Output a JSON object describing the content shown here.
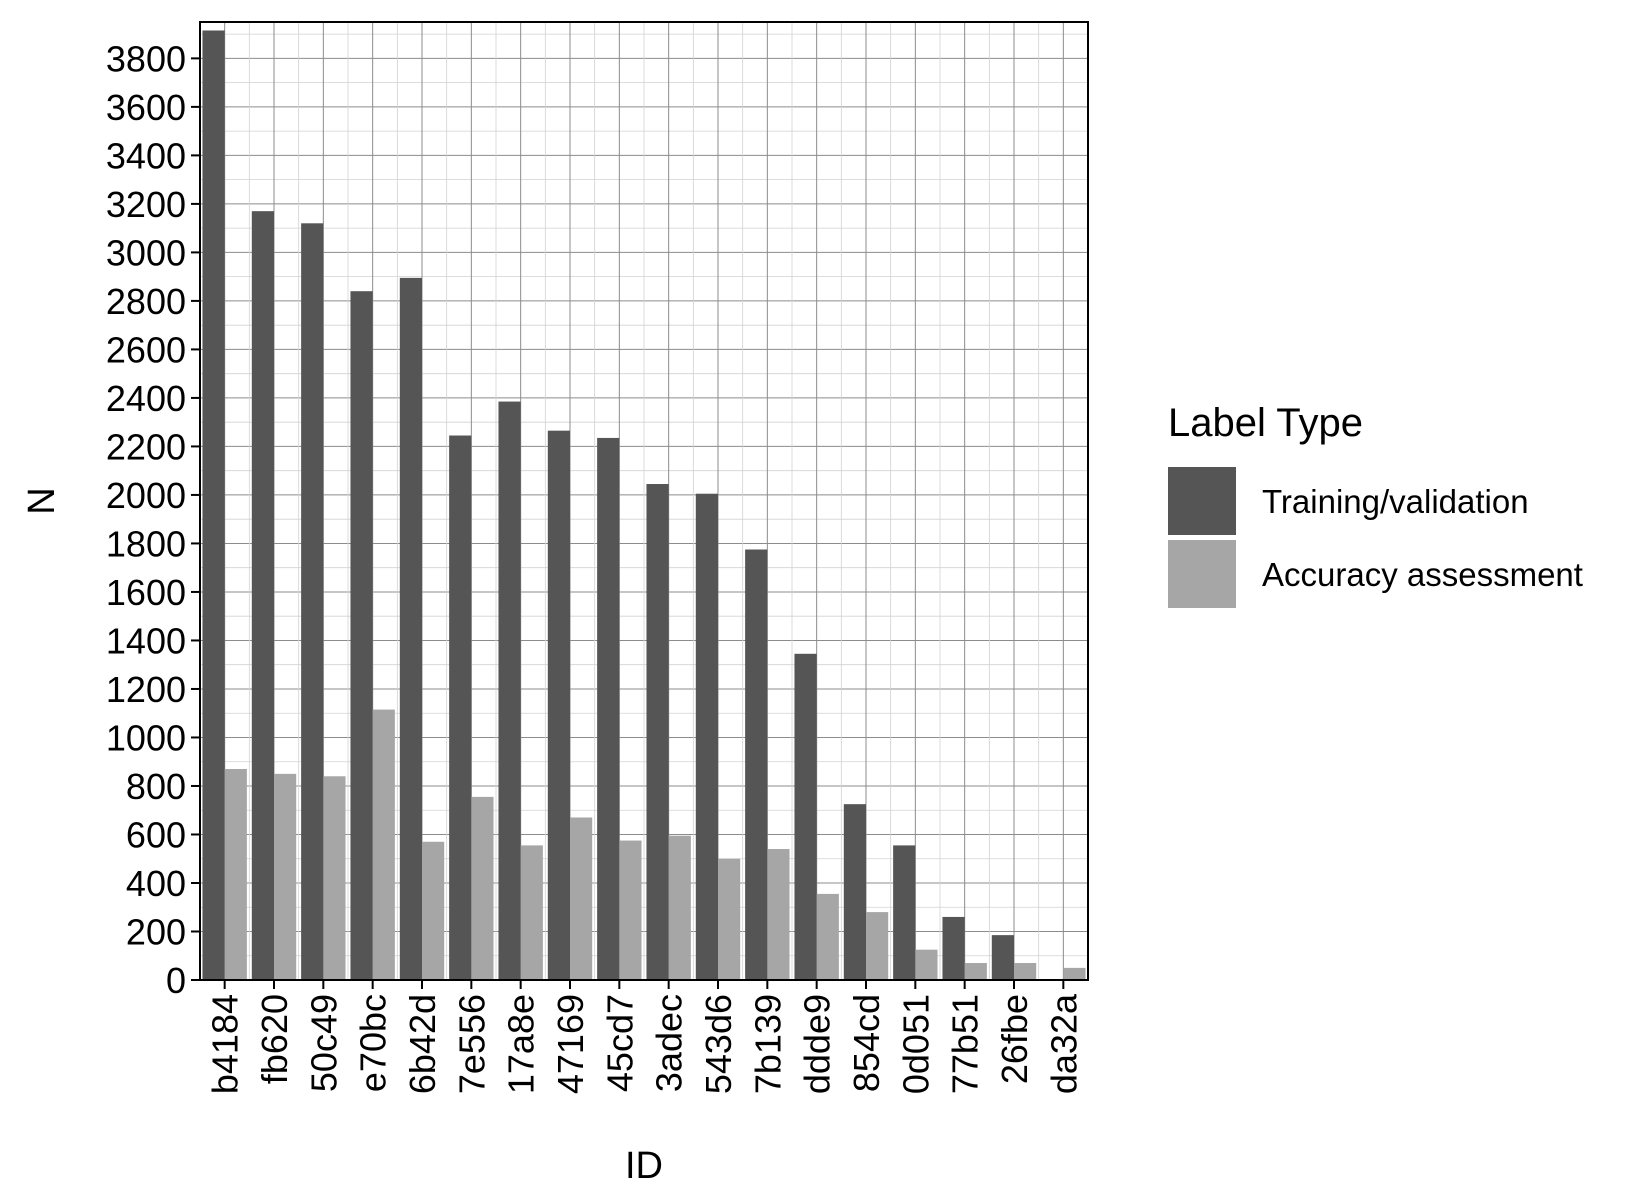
{
  "chart_data": {
    "type": "bar",
    "xlabel": "ID",
    "ylabel": "N",
    "ylim": [
      0,
      3950
    ],
    "y_ticks": [
      0,
      200,
      400,
      600,
      800,
      1000,
      1200,
      1400,
      1600,
      1800,
      2000,
      2200,
      2400,
      2600,
      2800,
      3000,
      3200,
      3400,
      3600,
      3800
    ],
    "y_minor_step": 100,
    "grid": true,
    "categories": [
      "b4184",
      "fb620",
      "50c49",
      "e70bc",
      "6b42d",
      "7e556",
      "17a8e",
      "47169",
      "45cd7",
      "3adec",
      "543d6",
      "7b139",
      "ddde9",
      "854cd",
      "0d051",
      "77b51",
      "26fbe",
      "da32a"
    ],
    "series": [
      {
        "name": "Training/validation",
        "color": "#555555",
        "values": [
          3915,
          3170,
          3120,
          2840,
          2895,
          2245,
          2385,
          2265,
          2235,
          2045,
          2005,
          1775,
          1345,
          725,
          555,
          260,
          185,
          0
        ]
      },
      {
        "name": "Accuracy assessment",
        "color": "#a6a6a6",
        "values": [
          870,
          850,
          840,
          1115,
          570,
          755,
          555,
          670,
          575,
          595,
          500,
          540,
          355,
          280,
          125,
          70,
          70,
          50
        ]
      }
    ],
    "legend": {
      "title": "Label Type",
      "placement": "right"
    }
  }
}
